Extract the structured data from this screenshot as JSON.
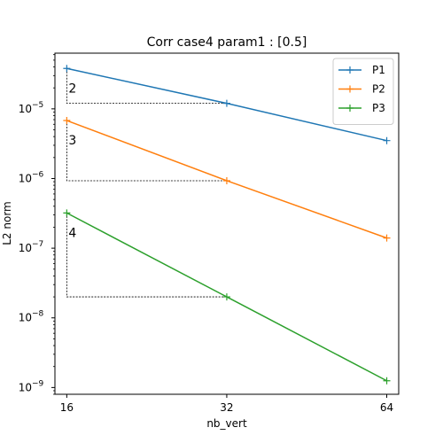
{
  "chart_data": {
    "type": "line",
    "title": "Corr case4 param1 : [0.5]",
    "xlabel": "nb_vert",
    "ylabel": "L2 norm",
    "xscale": "log2",
    "yscale": "log",
    "xlim": [
      15.2,
      67.4
    ],
    "ylim": [
      8e-10,
      6.3e-05
    ],
    "x": [
      16,
      32,
      64
    ],
    "x_tick_labels": [
      "16",
      "32",
      "64"
    ],
    "y_ticks": [
      {
        "value": 1e-09,
        "base": "10",
        "exp": "−9"
      },
      {
        "value": 1e-08,
        "base": "10",
        "exp": "−8"
      },
      {
        "value": 1e-07,
        "base": "10",
        "exp": "−7"
      },
      {
        "value": 1e-06,
        "base": "10",
        "exp": "−6"
      },
      {
        "value": 1e-05,
        "base": "10",
        "exp": "−5"
      }
    ],
    "grid": false,
    "legend_position": "top-right",
    "series": [
      {
        "name": "P1",
        "color": "#1f77b4",
        "values": [
          3.8e-05,
          1.2e-05,
          3.5e-06
        ]
      },
      {
        "name": "P2",
        "color": "#ff7f0e",
        "values": [
          6.8e-06,
          9.3e-07,
          1.4e-07
        ]
      },
      {
        "name": "P3",
        "color": "#2ca02c",
        "values": [
          3.2e-07,
          2e-08,
          1.25e-09
        ]
      }
    ],
    "slope_triangles": [
      {
        "label": "2",
        "x_start": 16,
        "x_end": 32,
        "y_start": 3.8e-05,
        "y_end": 1.2e-05
      },
      {
        "label": "3",
        "x_start": 16,
        "x_end": 32,
        "y_start": 6.8e-06,
        "y_end": 9.3e-07
      },
      {
        "label": "4",
        "x_start": 16,
        "x_end": 32,
        "y_start": 3.2e-07,
        "y_end": 2e-08
      }
    ]
  }
}
